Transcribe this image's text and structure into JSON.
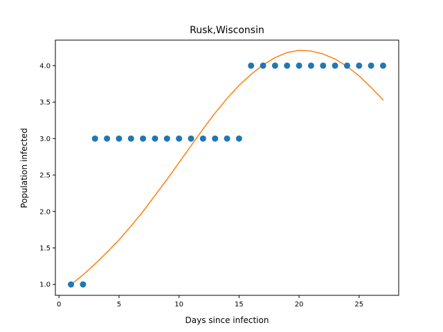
{
  "chart_data": {
    "type": "scatter",
    "title": "Rusk,Wisconsin",
    "xlabel": "Days since infection",
    "ylabel": "Population infected",
    "xlim": [
      -0.3,
      28.3
    ],
    "ylim": [
      0.85,
      4.35
    ],
    "xticks": [
      0,
      5,
      10,
      15,
      20,
      25
    ],
    "yticks": [
      1.0,
      1.5,
      2.0,
      2.5,
      3.0,
      3.5,
      4.0
    ],
    "ytick_labels": [
      "1.0",
      "1.5",
      "2.0",
      "2.5",
      "3.0",
      "3.5",
      "4.0"
    ],
    "grid": false,
    "series": [
      {
        "kind": "scatter",
        "color": "#1f77b4",
        "x": [
          1,
          2,
          3,
          4,
          5,
          6,
          7,
          8,
          9,
          10,
          11,
          12,
          13,
          14,
          15,
          16,
          17,
          18,
          19,
          20,
          21,
          22,
          23,
          24,
          25,
          26,
          27
        ],
        "y": [
          1,
          1,
          3,
          3,
          3,
          3,
          3,
          3,
          3,
          3,
          3,
          3,
          3,
          3,
          3,
          4,
          4,
          4,
          4,
          4,
          4,
          4,
          4,
          4,
          4,
          4,
          4
        ]
      },
      {
        "kind": "line",
        "color": "#ff7f0e",
        "x": [
          1,
          2,
          3,
          4,
          5,
          6,
          7,
          8,
          9,
          10,
          11,
          12,
          13,
          14,
          15,
          16,
          17,
          18,
          19,
          20,
          21,
          22,
          23,
          24,
          25,
          26,
          27
        ],
        "y": [
          1.0,
          1.13,
          1.28,
          1.44,
          1.61,
          1.8,
          2.0,
          2.22,
          2.44,
          2.67,
          2.9,
          3.13,
          3.35,
          3.55,
          3.73,
          3.88,
          4.01,
          4.11,
          4.18,
          4.21,
          4.2,
          4.16,
          4.09,
          3.99,
          3.86,
          3.7,
          3.53
        ]
      }
    ]
  }
}
